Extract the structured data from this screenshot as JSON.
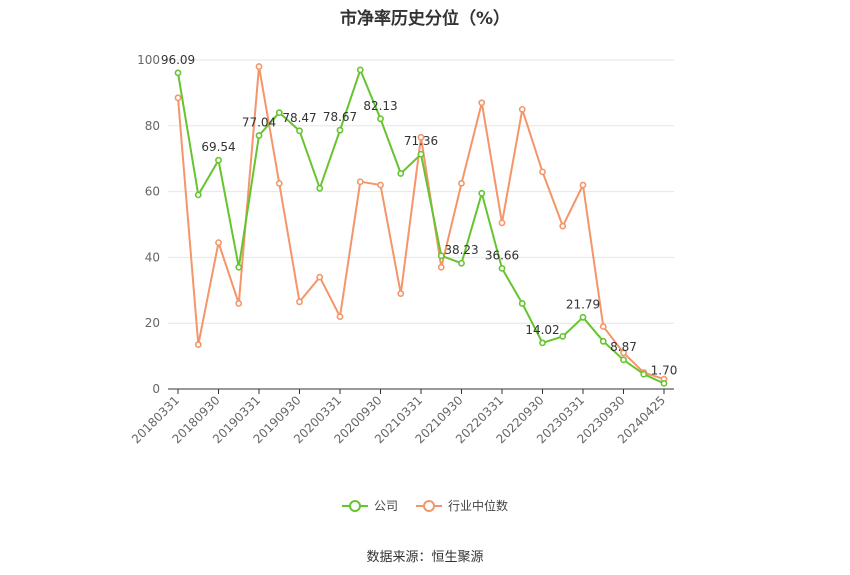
{
  "title": "市净率历史分位（%）",
  "source": "数据来源：恒生聚源",
  "colors": {
    "company": "#66c42f",
    "industry": "#f4956a",
    "grid": "#e6e6e6",
    "axis": "#333333"
  },
  "chart_data": {
    "type": "line",
    "title": "市净率历史分位（%）",
    "ylim": [
      0,
      100
    ],
    "yticks": [
      0,
      20,
      40,
      60,
      80,
      100
    ],
    "x": [
      "20180331",
      "20180630",
      "20180930",
      "20181231",
      "20190331",
      "20190630",
      "20190930",
      "20191231",
      "20200331",
      "20200630",
      "20200930",
      "20201231",
      "20210331",
      "20210630",
      "20210930",
      "20211231",
      "20220331",
      "20220630",
      "20220930",
      "20221231",
      "20230331",
      "20230630",
      "20230930",
      "20231231",
      "20240425"
    ],
    "xticks": [
      "20180331",
      "20180930",
      "20190331",
      "20190930",
      "20200331",
      "20200930",
      "20210331",
      "20210930",
      "20220331",
      "20220930",
      "20230331",
      "20230930",
      "20240425"
    ],
    "legend_position": "bottom",
    "grid": true,
    "series": [
      {
        "name": "公司",
        "color": "#66c42f",
        "values": [
          96.09,
          59,
          69.54,
          37,
          77.04,
          84,
          78.47,
          61,
          78.67,
          97,
          82.13,
          65.5,
          71.36,
          40.5,
          38.23,
          59.5,
          36.66,
          26,
          14.02,
          16,
          21.79,
          14.5,
          8.87,
          4.5,
          1.7
        ]
      },
      {
        "name": "行业中位数",
        "color": "#f4956a",
        "values": [
          88.5,
          13.5,
          44.5,
          26,
          98,
          62.5,
          26.5,
          34,
          22,
          63,
          62,
          29,
          76.5,
          37,
          62.5,
          87,
          50.5,
          85,
          66,
          49.5,
          62,
          19,
          11,
          5,
          3
        ]
      }
    ],
    "data_labels": [
      {
        "series": 0,
        "index": 0,
        "text": "96.09"
      },
      {
        "series": 0,
        "index": 2,
        "text": "69.54"
      },
      {
        "series": 0,
        "index": 4,
        "text": "77.04"
      },
      {
        "series": 0,
        "index": 6,
        "text": "78.47"
      },
      {
        "series": 0,
        "index": 8,
        "text": "78.67"
      },
      {
        "series": 0,
        "index": 10,
        "text": "82.13"
      },
      {
        "series": 0,
        "index": 12,
        "text": "71.36"
      },
      {
        "series": 0,
        "index": 14,
        "text": "38.23"
      },
      {
        "series": 0,
        "index": 16,
        "text": "36.66"
      },
      {
        "series": 0,
        "index": 18,
        "text": "14.02"
      },
      {
        "series": 0,
        "index": 20,
        "text": "21.79"
      },
      {
        "series": 0,
        "index": 22,
        "text": "8.87"
      },
      {
        "series": 0,
        "index": 24,
        "text": "1.70"
      }
    ]
  }
}
